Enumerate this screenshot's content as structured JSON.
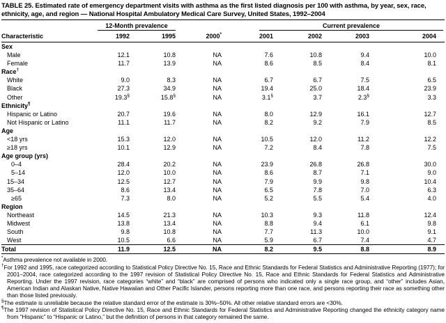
{
  "title": "TABLE 25. Estimated rate of emergency department visits with asthma as the first listed diagnosis per 100 with asthma, by year, sex, race, ethnicity, age, and region — National Hospital Ambulatory Medical Care Survey, United States, 1992–2004",
  "header": {
    "characteristic": "Characteristic",
    "group_12month": "12-Month prevalence",
    "group_current": "Current prevalence",
    "years": [
      "1992",
      "1995",
      "2000*",
      "2001",
      "2002",
      "2003",
      "2004"
    ]
  },
  "rows": [
    {
      "label": "Sex",
      "type": "section",
      "values": []
    },
    {
      "label": "Male",
      "type": "item",
      "values": [
        "12.1",
        "10.8",
        "NA",
        "7.6",
        "10.8",
        "9.4",
        "10.0"
      ]
    },
    {
      "label": "Female",
      "type": "item",
      "values": [
        "11.7",
        "13.9",
        "NA",
        "8.6",
        "8.5",
        "8.4",
        "8.1"
      ]
    },
    {
      "label": "Race†",
      "type": "section",
      "values": []
    },
    {
      "label": "White",
      "type": "item",
      "values": [
        "9.0",
        "8.3",
        "NA",
        "6.7",
        "6.7",
        "7.5",
        "6.5"
      ]
    },
    {
      "label": "Black",
      "type": "item",
      "values": [
        "27.3",
        "34.9",
        "NA",
        "19.4",
        "25.0",
        "18.4",
        "23.9"
      ]
    },
    {
      "label": "Other",
      "type": "item",
      "values": [
        "19.3§",
        "15.8§",
        "NA",
        "3.1§",
        "3.7",
        "2.3§",
        "3.3"
      ]
    },
    {
      "label": "Ethnicity¶",
      "type": "section",
      "values": []
    },
    {
      "label": "Hispanic or Latino",
      "type": "item",
      "values": [
        "20.7",
        "19.6",
        "NA",
        "8.0",
        "12.9",
        "16.1",
        "12.7"
      ]
    },
    {
      "label": "Not Hispanic or Latino",
      "type": "item",
      "values": [
        "11.1",
        "11.7",
        "NA",
        "8.2",
        "9.2",
        "7.9",
        "8.5"
      ]
    },
    {
      "label": "Age",
      "type": "section",
      "values": []
    },
    {
      "label": "<18 yrs",
      "type": "item",
      "values": [
        "15.3",
        "12.0",
        "NA",
        "10.5",
        "12.0",
        "11.2",
        "12.2"
      ]
    },
    {
      "label": "≥18 yrs",
      "type": "item",
      "values": [
        "10.1",
        "12.9",
        "NA",
        "7.2",
        "8.4",
        "7.8",
        "7.5"
      ]
    },
    {
      "label": "Age group (yrs)",
      "type": "section",
      "values": []
    },
    {
      "label": "0–4",
      "type": "item2",
      "values": [
        "28.4",
        "20.2",
        "NA",
        "23.9",
        "26.8",
        "26.8",
        "30.0"
      ]
    },
    {
      "label": "5–14",
      "type": "item2",
      "values": [
        "12.0",
        "10.0",
        "NA",
        "8.6",
        "8.7",
        "7.1",
        "9.0"
      ]
    },
    {
      "label": "15–34",
      "type": "item",
      "values": [
        "12.5",
        "12.7",
        "NA",
        "7.9",
        "9.9",
        "9.8",
        "10.4"
      ]
    },
    {
      "label": "35–64",
      "type": "item",
      "values": [
        "8.6",
        "13.4",
        "NA",
        "6.5",
        "7.8",
        "7.0",
        "6.3"
      ]
    },
    {
      "label": "≥65",
      "type": "item2",
      "values": [
        "7.3",
        "8.0",
        "NA",
        "5.2",
        "5.5",
        "5.4",
        "4.0"
      ]
    },
    {
      "label": "Region",
      "type": "section",
      "values": []
    },
    {
      "label": "Northeast",
      "type": "item",
      "values": [
        "14.5",
        "21.3",
        "NA",
        "10.3",
        "9.3",
        "11.8",
        "12.4"
      ]
    },
    {
      "label": "Midwest",
      "type": "item",
      "values": [
        "13.8",
        "13.4",
        "NA",
        "8.8",
        "9.4",
        "6.1",
        "9.8"
      ]
    },
    {
      "label": "South",
      "type": "item",
      "values": [
        "9.8",
        "10.8",
        "NA",
        "7.7",
        "11.3",
        "10.0",
        "9.1"
      ]
    },
    {
      "label": "West",
      "type": "item",
      "values": [
        "10.5",
        "6.6",
        "NA",
        "5.9",
        "6.7",
        "7.4",
        "4.7"
      ]
    },
    {
      "label": "Total",
      "type": "total",
      "values": [
        "11.9",
        "12.5",
        "NA",
        "8.2",
        "9.5",
        "8.8",
        "8.9"
      ]
    }
  ],
  "footnotes": [
    {
      "sym": "*",
      "text": "Asthma prevalence not available in 2000."
    },
    {
      "sym": "†",
      "text": "For 1992 and 1995, race categorized according to Statistical Policy Directive No. 15, Race and Ethnic Standards for Federal Statistics and Administrative Reporting (1977); for 2001–2004, race categorized according to the 1997 revision of Statistical Policy Directive No. 15, Race and Ethnic Standards for Federal Statistics and Administrative Reporting. Under the 1997 revision, race categories “white” and “black” are comprised of persons who indicated only a single race group, and “other” includes Asian, American Indian and Alaskan Native, Native Hawaiian and Other Pacific Islander, persons reporting more than one race, and persons reporting their race as something other than those listed previously."
    },
    {
      "sym": "§",
      "text": "The estimate is unreliable because the relative standard error of the estimate is 30%–50%. All other relative standard errors are <30%."
    },
    {
      "sym": "¶",
      "text": "The 1997 revision of Statistical Policy Directive No. 15, Race and Ethnic Standards for Federal Statistics and Administrative Reporting changed the ethnicity category name from “Hispanic” to “Hispanic or Latino,” but the definition of persons in that category remained the same."
    }
  ]
}
